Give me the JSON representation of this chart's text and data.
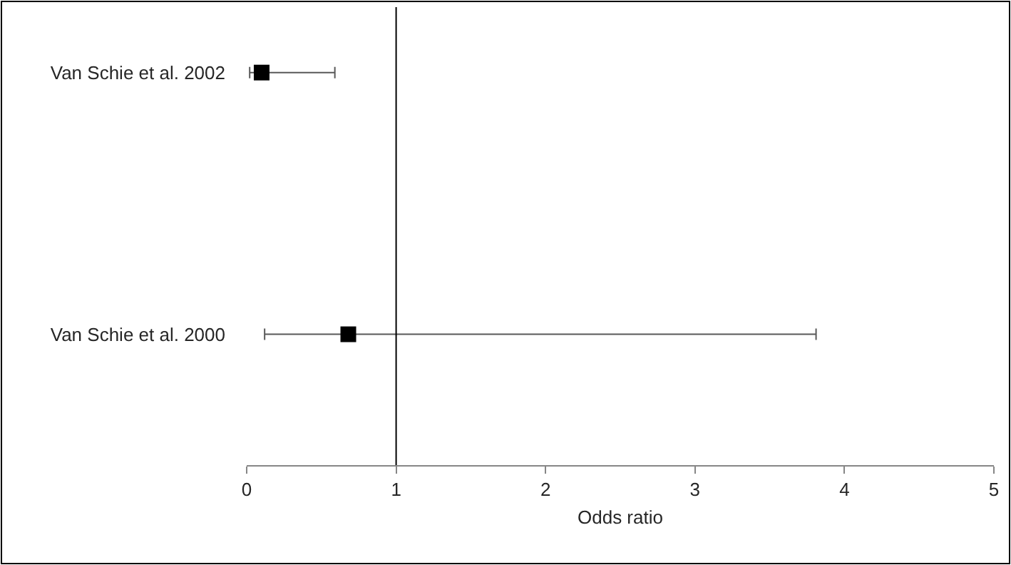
{
  "chart_data": {
    "type": "scatter",
    "orientation": "horizontal",
    "xlabel": "Odds ratio",
    "categories": [
      "Van Schie et al. 2002",
      "Van Schie et al. 2000"
    ],
    "series": [
      {
        "color": "#000000",
        "values": [
          0.1,
          0.68
        ],
        "errors": [
          [
            0.02,
            0.59
          ],
          [
            0.12,
            3.81
          ]
        ]
      }
    ],
    "xlim": [
      0,
      5
    ],
    "xticks": [
      0,
      1,
      2,
      3,
      4,
      5
    ],
    "ref_lines": [
      {
        "axis": "x",
        "value": 1,
        "color": "#000000"
      }
    ],
    "marker": "square"
  }
}
